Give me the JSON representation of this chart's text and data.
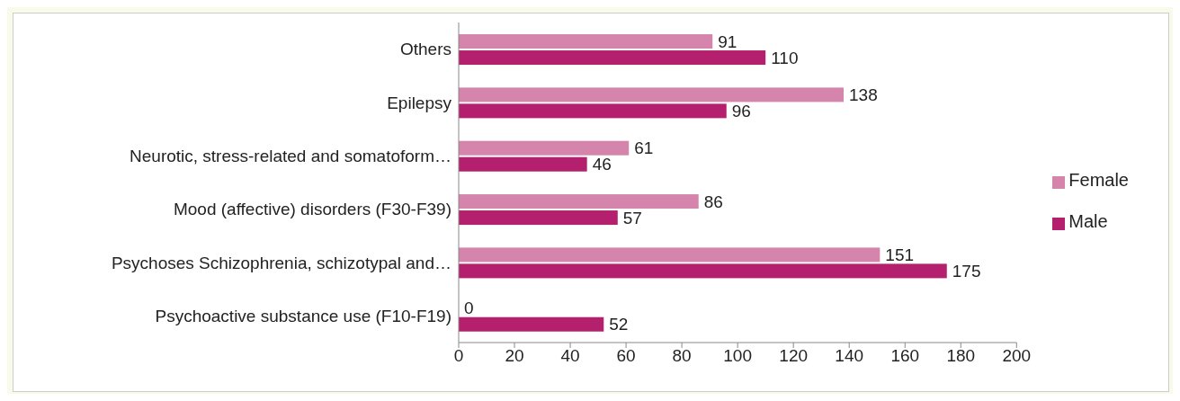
{
  "chart_data": {
    "type": "bar",
    "orientation": "horizontal",
    "categories": [
      "Others",
      "Epilepsy",
      "Neurotic, stress-related and somatoform…",
      "Mood (affective) disorders (F30-F39)",
      "Psychoses Schizophrenia, schizotypal and…",
      "Psychoactive substance use (F10-F19)"
    ],
    "series": [
      {
        "name": "Female",
        "color": "#d585ac",
        "values": [
          91,
          138,
          61,
          86,
          151,
          0
        ]
      },
      {
        "name": "Male",
        "color": "#b5206e",
        "values": [
          110,
          96,
          46,
          57,
          175,
          52
        ]
      }
    ],
    "xlim": [
      0,
      200
    ],
    "xticks": [
      0,
      20,
      40,
      60,
      80,
      100,
      120,
      140,
      160,
      180,
      200
    ],
    "data_labels": true,
    "grid": false,
    "legend": "right"
  }
}
